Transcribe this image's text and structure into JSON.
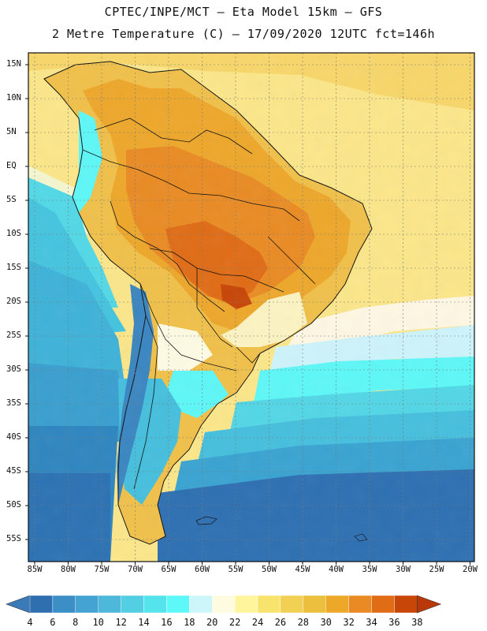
{
  "header": {
    "line1": "CPTEC/INPE/MCT –  Eta Model 15km – GFS",
    "line2": "2 Metre Temperature (C) – 17/09/2020 12UTC fct=146h"
  },
  "map": {
    "lat_labels": [
      "15N",
      "10N",
      "5N",
      "EQ",
      "5S",
      "10S",
      "15S",
      "20S",
      "25S",
      "30S",
      "35S",
      "40S",
      "45S",
      "50S",
      "55S"
    ],
    "lon_labels": [
      "85W",
      "80W",
      "75W",
      "70W",
      "65W",
      "60W",
      "55W",
      "50W",
      "45W",
      "40W",
      "35W",
      "30W",
      "25W",
      "20W"
    ]
  },
  "colorbar": {
    "labels": [
      "4",
      "6",
      "8",
      "10",
      "12",
      "14",
      "16",
      "18",
      "20",
      "22",
      "24",
      "26",
      "28",
      "30",
      "32",
      "34",
      "36",
      "38"
    ],
    "colors": [
      "#3a7ab8",
      "#2f6fb0",
      "#3b8ec6",
      "#45a3d3",
      "#4eb8da",
      "#52cfe2",
      "#55e4ec",
      "#5df8f7",
      "#cdf6fb",
      "#fffbe0",
      "#fff59c",
      "#f8e46c",
      "#f2d054",
      "#ecbf3e",
      "#eda82a",
      "#e98a24",
      "#e06c16",
      "#c84608",
      "#b8380a"
    ]
  }
}
